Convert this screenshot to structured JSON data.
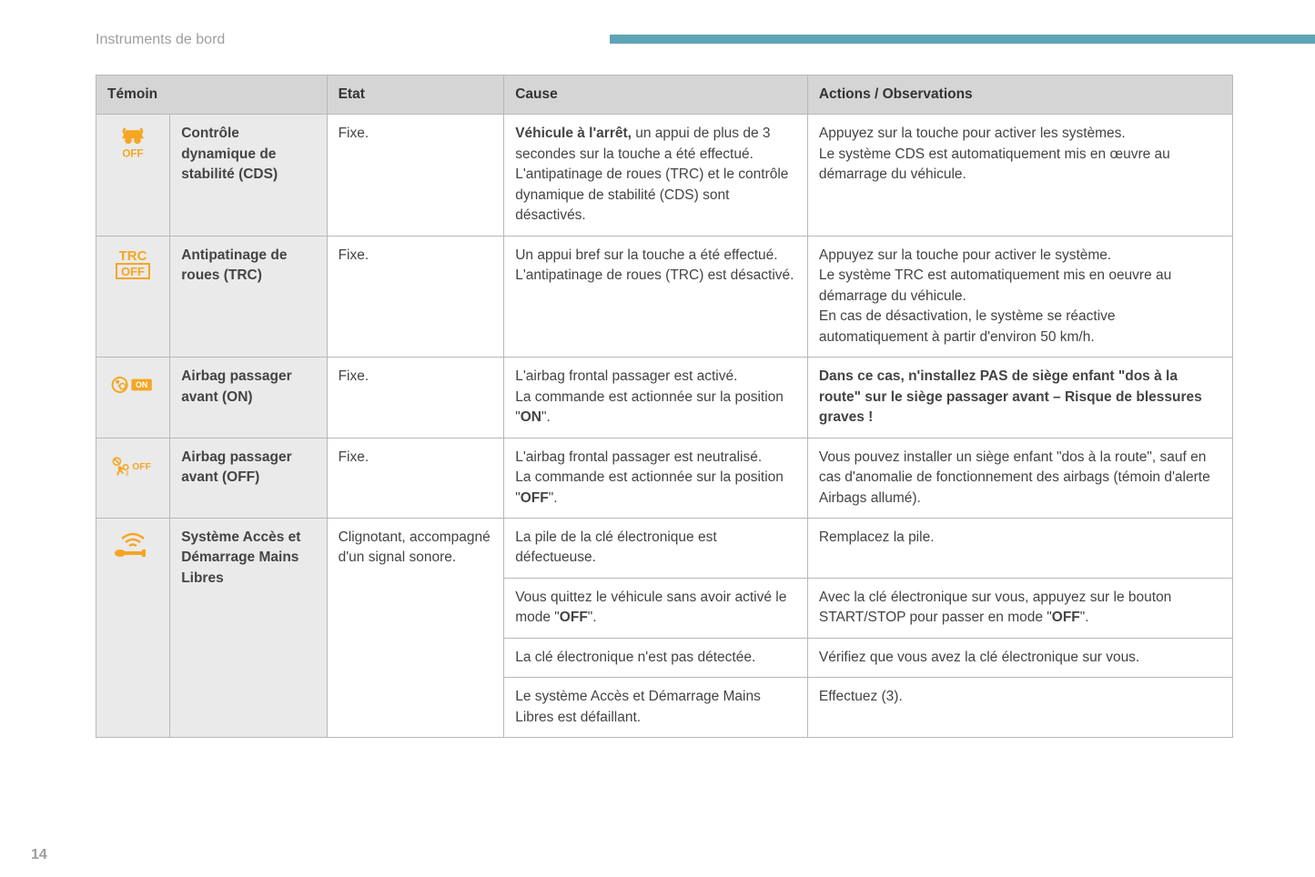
{
  "page": {
    "section_title": "Instruments de bord",
    "page_number": "14",
    "accent_color": "#5fa5b5",
    "icon_color": "#f5a623",
    "text_color": "#444444",
    "header_bg": "#d5d5d5",
    "shaded_bg": "#eaeaea",
    "border_color": "#b8b8b8"
  },
  "table": {
    "headers": {
      "temoin": "Témoin",
      "etat": "Etat",
      "cause": "Cause",
      "actions": "Actions / Observations"
    },
    "rows": [
      {
        "icon": "cds-off",
        "name": "Contrôle dynamique de stabilité (CDS)",
        "etat": "Fixe.",
        "cause_bold_lead": "Véhicule à l'arrêt,",
        "cause_rest": " un appui de plus de 3 secondes sur la touche a été effectué.\nL'antipatinage de roues (TRC) et le contrôle dynamique de stabilité (CDS) sont désactivés.",
        "action": "Appuyez sur la touche pour activer les systèmes.\nLe système CDS est automatiquement mis en œuvre au démarrage du véhicule."
      },
      {
        "icon": "trc-off",
        "name": "Antipatinage de roues (TRC)",
        "etat": "Fixe.",
        "cause": "Un appui bref sur la touche a été effectué.\nL'antipatinage de roues (TRC) est désactivé.",
        "action": "Appuyez sur la touche pour activer le système.\nLe système TRC est automatiquement mis en oeuvre au démarrage du véhicule.\nEn cas de désactivation, le système se réactive automatiquement à partir d'environ 50 km/h."
      },
      {
        "icon": "airbag-on",
        "name": "Airbag passager avant (ON)",
        "etat": "Fixe.",
        "cause_pre": "L'airbag frontal passager est activé.\nLa commande est actionnée sur la position \"",
        "cause_bold": "ON",
        "cause_post": "\".",
        "action_bold": "Dans ce cas, n'installez PAS de siège enfant \"dos à la route\" sur le siège passager avant – Risque de blessures graves !"
      },
      {
        "icon": "airbag-off",
        "name": "Airbag passager avant (OFF)",
        "etat": "Fixe.",
        "cause_pre": "L'airbag frontal passager est neutralisé.\nLa commande est actionnée sur la position \"",
        "cause_bold": "OFF",
        "cause_post": "\".",
        "action": "Vous pouvez installer un siège enfant \"dos à la route\", sauf en cas d'anomalie de fonctionnement des airbags (témoin d'alerte Airbags allumé)."
      },
      {
        "icon": "key",
        "name": "Système Accès et Démarrage Mains Libres",
        "etat": "Clignotant, accompagné d'un signal sonore.",
        "sub": [
          {
            "cause": "La pile de la clé électronique est défectueuse.",
            "action": "Remplacez la pile."
          },
          {
            "cause_pre": "Vous quittez le véhicule sans avoir activé le mode \"",
            "cause_bold": "OFF",
            "cause_post": "\".",
            "action_pre": "Avec la clé électronique sur vous, appuyez sur le bouton START/STOP pour passer en mode \"",
            "action_bold": "OFF",
            "action_post": "\"."
          },
          {
            "cause": "La clé électronique n'est pas détectée.",
            "action": "Vérifiez que vous avez la clé électronique sur vous."
          },
          {
            "cause": "Le système Accès et Démarrage Mains Libres est défaillant.",
            "action": "Effectuez (3)."
          }
        ]
      }
    ]
  }
}
